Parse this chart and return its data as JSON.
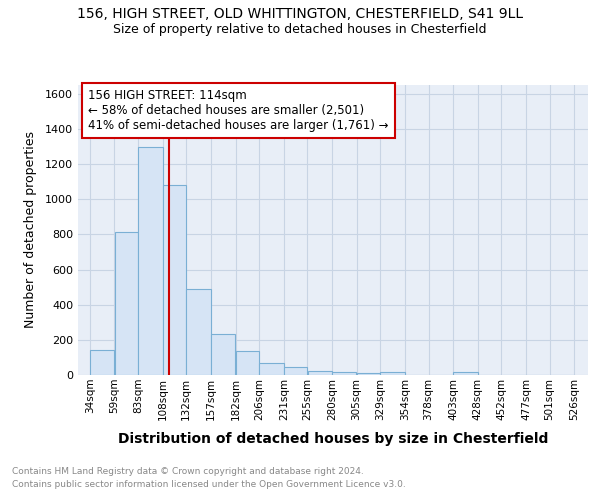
{
  "title_line1": "156, HIGH STREET, OLD WHITTINGTON, CHESTERFIELD, S41 9LL",
  "title_line2": "Size of property relative to detached houses in Chesterfield",
  "xlabel": "Distribution of detached houses by size in Chesterfield",
  "ylabel": "Number of detached properties",
  "bar_left_edges": [
    34,
    59,
    83,
    108,
    132,
    157,
    182,
    206,
    231,
    255,
    280,
    305,
    329,
    354,
    378,
    403,
    428,
    452,
    477,
    501
  ],
  "bar_widths": [
    25,
    24,
    25,
    24,
    25,
    25,
    24,
    25,
    24,
    25,
    25,
    24,
    25,
    24,
    25,
    25,
    24,
    25,
    24,
    25
  ],
  "bar_heights": [
    140,
    815,
    1295,
    1080,
    490,
    235,
    135,
    70,
    46,
    25,
    15,
    10,
    15,
    0,
    0,
    15,
    0,
    0,
    0,
    0
  ],
  "bar_color": "#d6e4f5",
  "bar_edge_color": "#7aafd4",
  "x_tick_labels": [
    "34sqm",
    "59sqm",
    "83sqm",
    "108sqm",
    "132sqm",
    "157sqm",
    "182sqm",
    "206sqm",
    "231sqm",
    "255sqm",
    "280sqm",
    "305sqm",
    "329sqm",
    "354sqm",
    "378sqm",
    "403sqm",
    "428sqm",
    "452sqm",
    "477sqm",
    "501sqm",
    "526sqm"
  ],
  "x_tick_positions": [
    34,
    59,
    83,
    108,
    132,
    157,
    182,
    206,
    231,
    255,
    280,
    305,
    329,
    354,
    378,
    403,
    428,
    452,
    477,
    501,
    526
  ],
  "ylim": [
    0,
    1650
  ],
  "xlim": [
    22,
    540
  ],
  "property_size": 114,
  "red_line_color": "#cc0000",
  "annotation_text": "156 HIGH STREET: 114sqm\n← 58% of detached houses are smaller (2,501)\n41% of semi-detached houses are larger (1,761) →",
  "annotation_box_color": "#cc0000",
  "footer_line1": "Contains HM Land Registry data © Crown copyright and database right 2024.",
  "footer_line2": "Contains public sector information licensed under the Open Government Licence v3.0.",
  "footer_color": "#888888",
  "background_color": "#ffffff",
  "plot_bg_color": "#e8eef7",
  "grid_color": "#c8d4e4",
  "yticks": [
    0,
    200,
    400,
    600,
    800,
    1000,
    1200,
    1400,
    1600
  ]
}
